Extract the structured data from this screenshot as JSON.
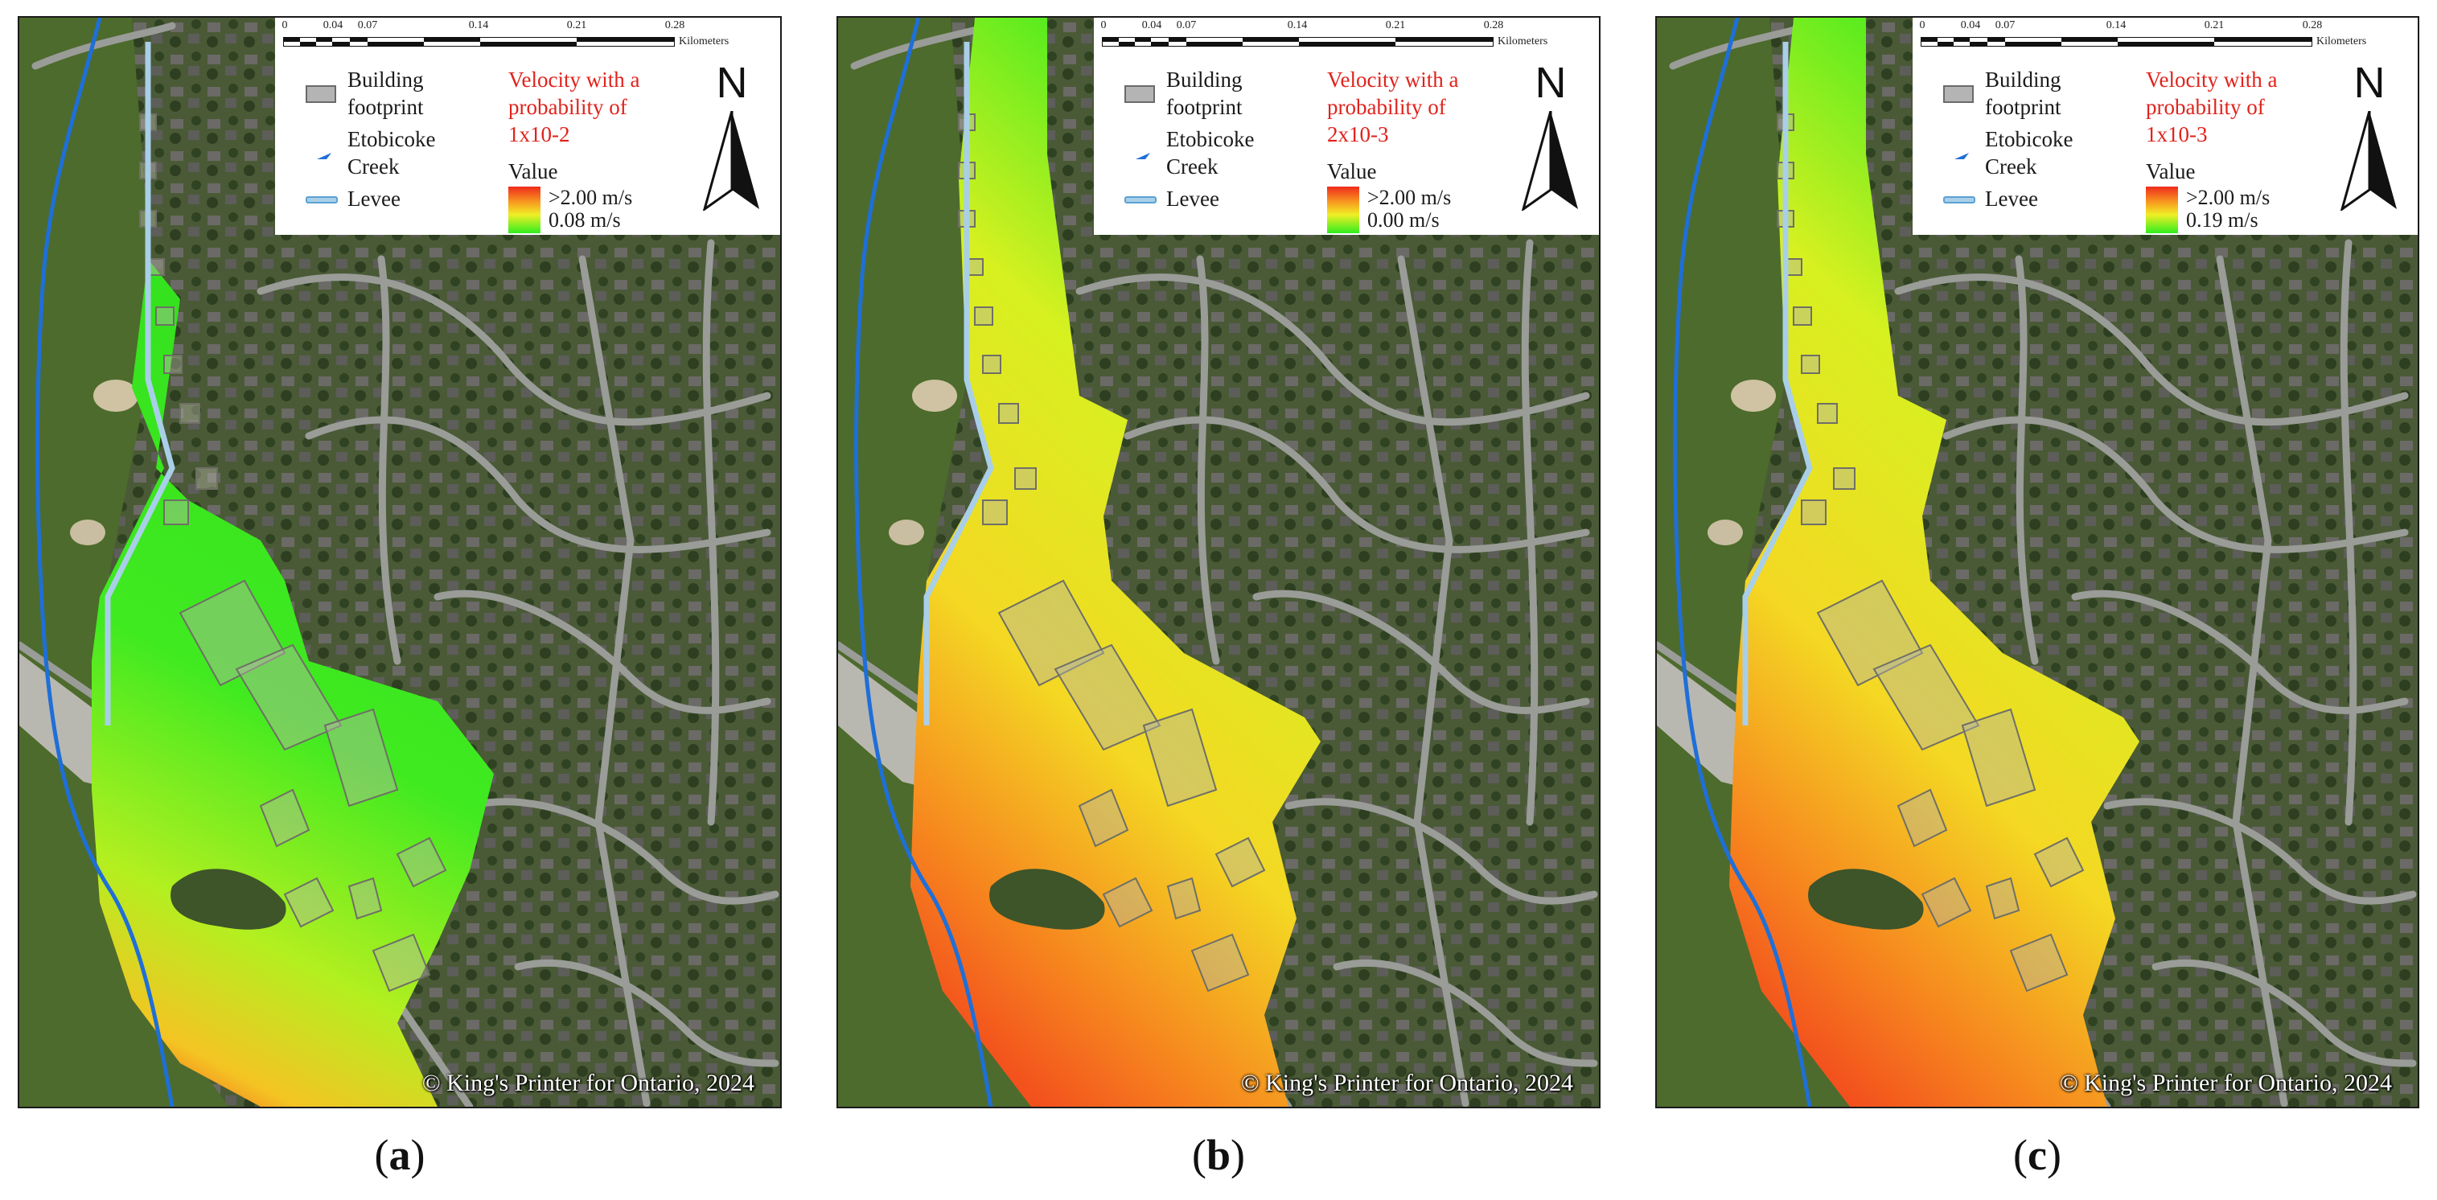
{
  "scalebar": {
    "ticks": [
      "0",
      "0.04",
      "0.07",
      "0.14",
      "0.21",
      "0.28"
    ],
    "unit": "Kilometers"
  },
  "legend": {
    "building": "Building footprint",
    "creek": "Etobicoke Creek",
    "levee": "Levee",
    "value_label": "Value",
    "max_label": ">2.00 m/s"
  },
  "north_label": "N",
  "copyright": "© King's Printer for Ontario, 2024",
  "colors": {
    "velocity_high": "#f02a1c",
    "velocity_mid": "#f0ee25",
    "velocity_low": "#30ee20",
    "creek": "#1f6fd8",
    "levee": "#a9cfe8",
    "title_red": "#e0231c"
  },
  "panels": [
    {
      "letter": "a",
      "velocity_title": "Velocity with a probability of 1x10-2",
      "min_label": "0.08 m/s",
      "extent_level": "low"
    },
    {
      "letter": "b",
      "velocity_title": "Velocity with a probability of 2x10-3",
      "min_label": "0.00 m/s",
      "extent_level": "high"
    },
    {
      "letter": "c",
      "velocity_title": "Velocity with a probability of 1x10-3",
      "min_label": "0.19 m/s",
      "extent_level": "high"
    }
  ]
}
